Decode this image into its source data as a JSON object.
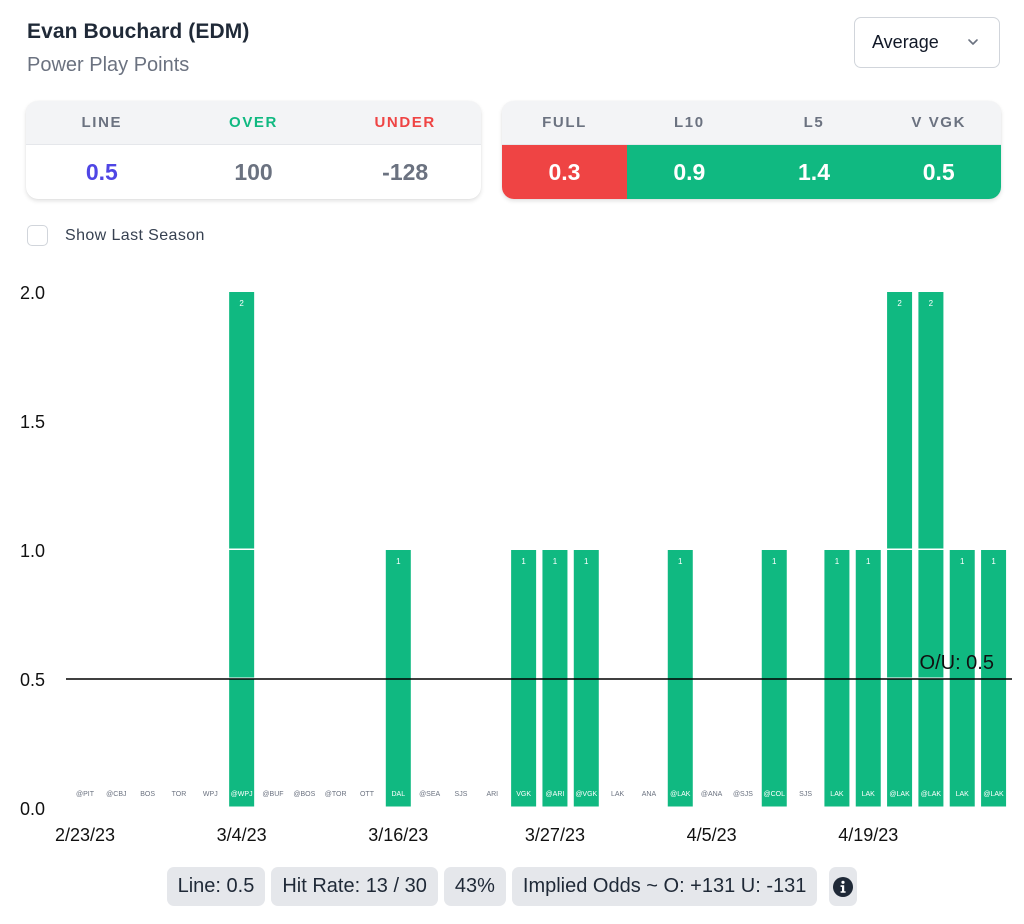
{
  "header": {
    "player": "Evan Bouchard (EDM)",
    "stat": "Power Play Points"
  },
  "mode_select": {
    "selected": "Average",
    "icon": "chevron-down-icon"
  },
  "line_card": {
    "headers": [
      "LINE",
      "OVER",
      "UNDER"
    ],
    "values": [
      "0.5",
      "100",
      "-128"
    ],
    "header_colors": [
      "#6b7280",
      "#10b981",
      "#ef4444"
    ],
    "value_colors": [
      "#4f46e5",
      "#6b7280",
      "#6b7280"
    ]
  },
  "avg_card": {
    "headers": [
      "FULL",
      "L10",
      "L5",
      "V VGK"
    ],
    "values": [
      "0.3",
      "0.9",
      "1.4",
      "0.5"
    ],
    "bg_colors": [
      "#ef4444",
      "#10b981",
      "#10b981",
      "#10b981"
    ]
  },
  "show_last_season": {
    "label": "Show Last Season",
    "checked": false
  },
  "colors": {
    "bar": "#10b981",
    "hit": "#10b981",
    "miss": "#ef4444"
  },
  "chart_data": {
    "type": "bar",
    "title": "",
    "xlabel": "",
    "ylabel": "",
    "ylim": [
      0,
      2
    ],
    "yticks": [
      "0.0",
      "0.5",
      "1.0",
      "1.5",
      "2.0"
    ],
    "grid": false,
    "categories": [
      "@PIT",
      "@CBJ",
      "BOS",
      "TOR",
      "WPJ",
      "@WPJ",
      "@BUF",
      "@BOS",
      "@TOR",
      "OTT",
      "DAL",
      "@SEA",
      "SJS",
      "ARI",
      "VGK",
      "@ARI",
      "@VGK",
      "LAK",
      "ANA",
      "@LAK",
      "@ANA",
      "@SJS",
      "@COL",
      "SJS",
      "LAK",
      "LAK",
      "@LAK",
      "@LAK",
      "LAK",
      "@LAK"
    ],
    "values": [
      0,
      0,
      0,
      0,
      0,
      2,
      0,
      0,
      0,
      0,
      1,
      0,
      0,
      0,
      1,
      1,
      1,
      0,
      0,
      1,
      0,
      0,
      1,
      0,
      1,
      1,
      2,
      2,
      1,
      1
    ],
    "date_ticks": [
      {
        "index": 0,
        "label": "2/23/23"
      },
      {
        "index": 5,
        "label": "3/4/23"
      },
      {
        "index": 10,
        "label": "3/16/23"
      },
      {
        "index": 15,
        "label": "3/27/23"
      },
      {
        "index": 20,
        "label": "4/5/23"
      },
      {
        "index": 25,
        "label": "4/19/23"
      }
    ],
    "reference_line": {
      "value": 0.5,
      "label": "O/U: 0.5"
    }
  },
  "footer": {
    "line": "Line: 0.5",
    "hit_rate": "Hit Rate: 13 / 30",
    "pct": "43%",
    "implied": "Implied Odds ~ O: +131 U: -131",
    "info_icon": "info-icon"
  }
}
